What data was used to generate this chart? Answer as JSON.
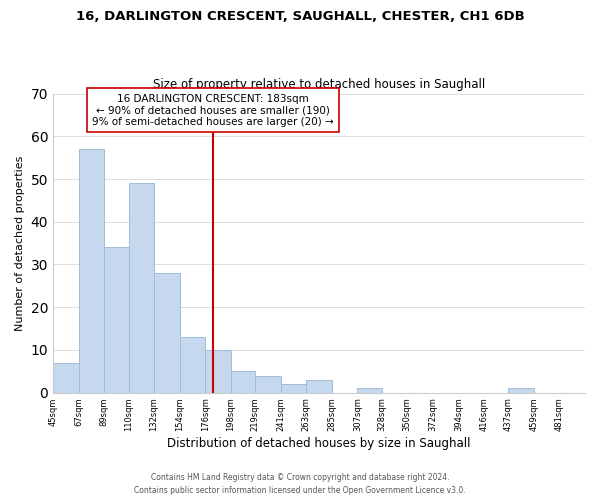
{
  "title": "16, DARLINGTON CRESCENT, SAUGHALL, CHESTER, CH1 6DB",
  "subtitle": "Size of property relative to detached houses in Saughall",
  "xlabel": "Distribution of detached houses by size in Saughall",
  "ylabel": "Number of detached properties",
  "bar_left_edges": [
    45,
    67,
    89,
    110,
    132,
    154,
    176,
    198,
    219,
    241,
    263,
    285,
    307,
    328,
    350,
    372,
    394,
    416,
    437,
    459
  ],
  "bar_heights": [
    7,
    57,
    34,
    49,
    28,
    13,
    10,
    5,
    4,
    2,
    3,
    0,
    1,
    0,
    0,
    0,
    0,
    0,
    1,
    0
  ],
  "bar_widths": [
    22,
    22,
    21,
    22,
    22,
    22,
    22,
    21,
    22,
    22,
    22,
    22,
    21,
    22,
    22,
    22,
    22,
    21,
    22,
    22
  ],
  "bar_color": "#c5d8ed",
  "bar_edge_color": "#a0bcd8",
  "vline_x": 183,
  "vline_color": "#cc0000",
  "ylim": [
    0,
    70
  ],
  "yticks": [
    0,
    10,
    20,
    30,
    40,
    50,
    60,
    70
  ],
  "xlim_left": 45,
  "xlim_right": 503,
  "xtick_labels": [
    "45sqm",
    "67sqm",
    "89sqm",
    "110sqm",
    "132sqm",
    "154sqm",
    "176sqm",
    "198sqm",
    "219sqm",
    "241sqm",
    "263sqm",
    "285sqm",
    "307sqm",
    "328sqm",
    "350sqm",
    "372sqm",
    "394sqm",
    "416sqm",
    "437sqm",
    "459sqm",
    "481sqm"
  ],
  "xtick_positions": [
    45,
    67,
    89,
    110,
    132,
    154,
    176,
    198,
    219,
    241,
    263,
    285,
    307,
    328,
    350,
    372,
    394,
    416,
    437,
    459,
    481
  ],
  "annotation_title": "16 DARLINGTON CRESCENT: 183sqm",
  "annotation_line1": "← 90% of detached houses are smaller (190)",
  "annotation_line2": "9% of semi-detached houses are larger (20) →",
  "footer1": "Contains HM Land Registry data © Crown copyright and database right 2024.",
  "footer2": "Contains public sector information licensed under the Open Government Licence v3.0.",
  "background_color": "#ffffff",
  "grid_color": "#dddddd"
}
